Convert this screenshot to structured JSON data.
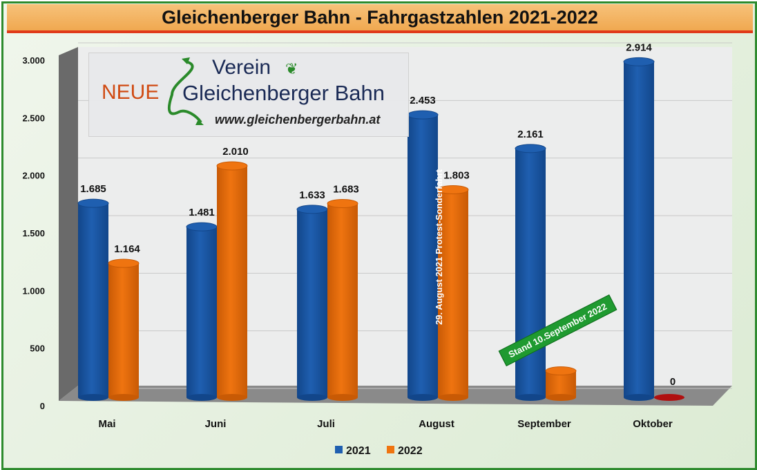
{
  "chart_data": {
    "type": "bar",
    "title": "Gleichenberger Bahn - Fahrgastzahlen 2021-2022",
    "categories": [
      "Mai",
      "Juni",
      "Juli",
      "August",
      "September",
      "Oktober"
    ],
    "series": [
      {
        "name": "2021",
        "color": "#1f5fb0",
        "values": [
          1685,
          1481,
          1633,
          2453,
          2161,
          2914
        ],
        "labels": [
          "1.685",
          "1.481",
          "1.633",
          "2.453",
          "2.161",
          "2.914"
        ]
      },
      {
        "name": "2022",
        "color": "#ef7410",
        "values": [
          1164,
          2010,
          1683,
          1803,
          230,
          0
        ],
        "labels": [
          "1.164",
          "2.010",
          "1.683",
          "1.803",
          "",
          "0"
        ]
      }
    ],
    "ylim": [
      0,
      3000
    ],
    "yticks": [
      0,
      500,
      1000,
      1500,
      2000,
      2500,
      3000
    ],
    "ytick_labels": [
      "0",
      "500",
      "1.000",
      "1.500",
      "2.000",
      "2.500",
      "3.000"
    ],
    "grid": true,
    "legend_placement": "bottom",
    "annotations": [
      "29. August 2021 Protest-Sonderfahrt",
      "Stand 10.September 2022"
    ]
  },
  "logo": {
    "neue": "NEUE",
    "verein": "Verein",
    "name": "Gleichenberger Bahn",
    "url": "www.gleichenbergerbahn.at"
  }
}
